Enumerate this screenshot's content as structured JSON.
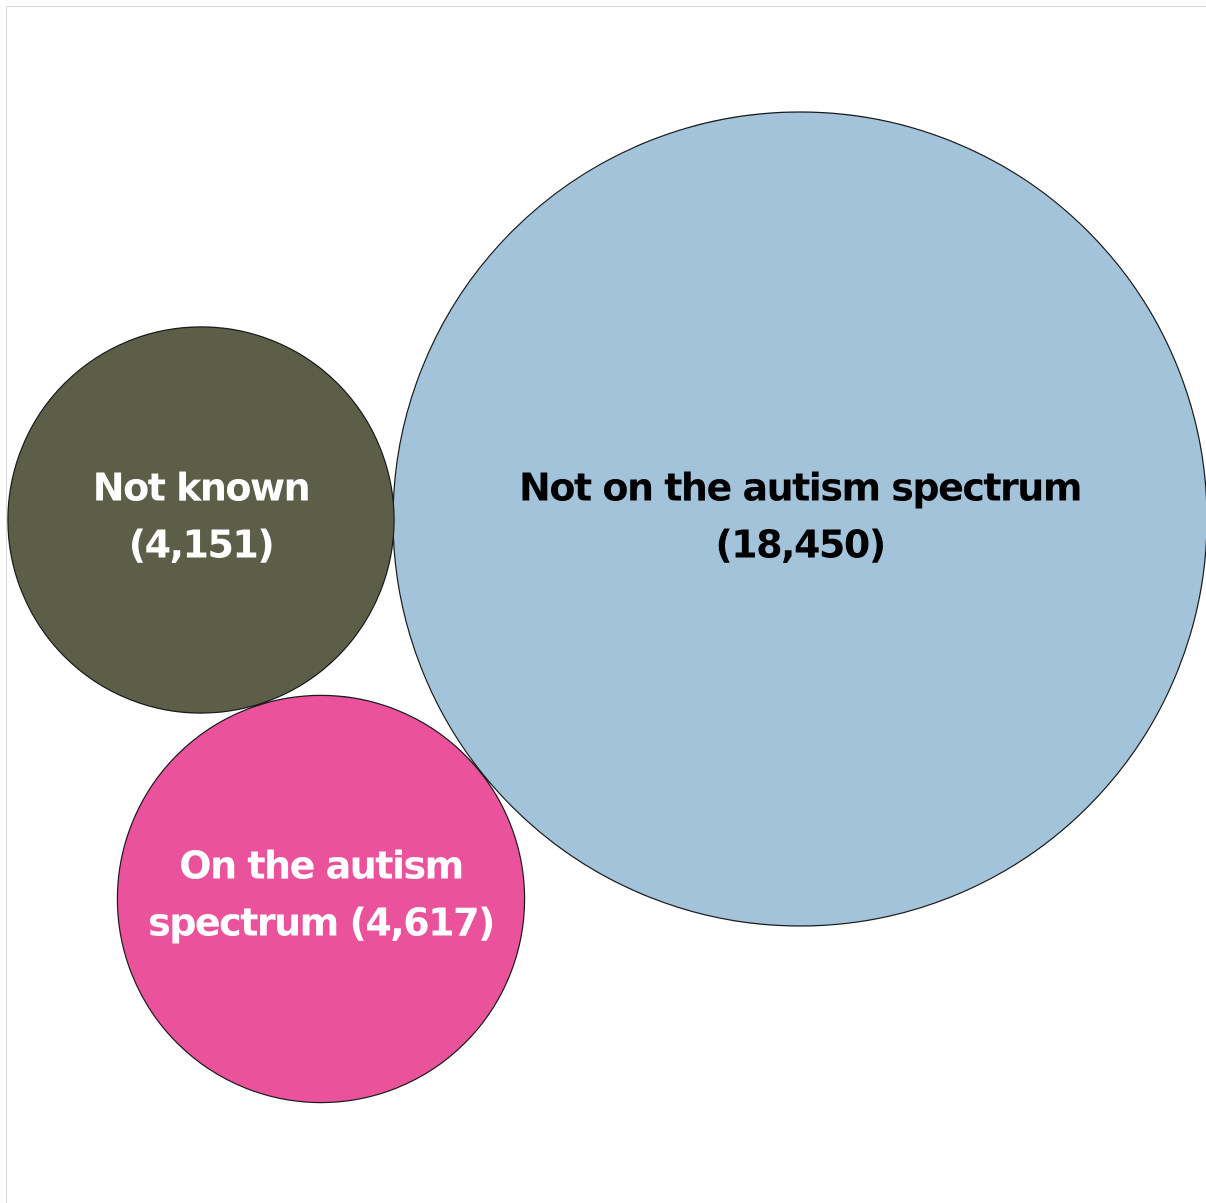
{
  "chart_data": {
    "type": "bubble",
    "unit": "",
    "bubbles": [
      {
        "key": "not_on_spectrum",
        "lines": [
          "Not on the autism spectrum",
          "(18,450)"
        ],
        "value": 18450,
        "color": "#a2c3da",
        "text_color": "#000000"
      },
      {
        "key": "not_known",
        "lines": [
          "Not known",
          "(4,151)"
        ],
        "value": 4151,
        "color": "#5c5e48",
        "text_color": "#ffffff"
      },
      {
        "key": "on_spectrum",
        "lines": [
          "On the autism",
          "spectrum (4,617)"
        ],
        "value": 4617,
        "color": "#ea529c",
        "text_color": "#ffffff"
      }
    ]
  }
}
